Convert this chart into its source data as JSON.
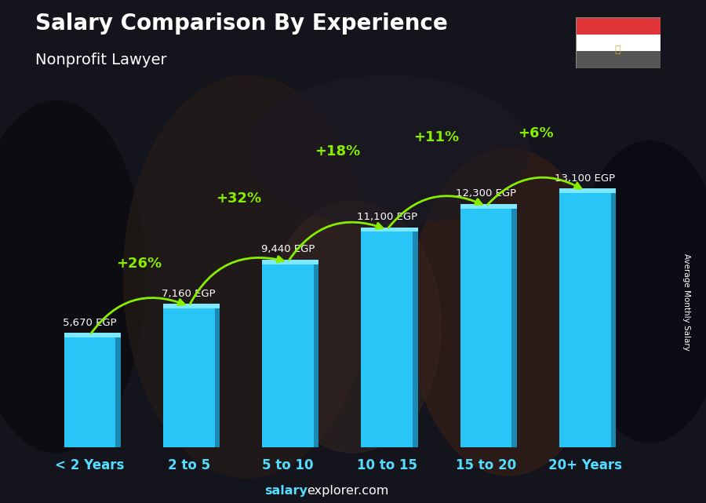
{
  "title": "Salary Comparison By Experience",
  "subtitle": "Nonprofit Lawyer",
  "categories": [
    "< 2 Years",
    "2 to 5",
    "5 to 10",
    "10 to 15",
    "15 to 20",
    "20+ Years"
  ],
  "values": [
    5670,
    7160,
    9440,
    11100,
    12300,
    13100
  ],
  "value_labels": [
    "5,670 EGP",
    "7,160 EGP",
    "9,440 EGP",
    "11,100 EGP",
    "12,300 EGP",
    "13,100 EGP"
  ],
  "pct_labels": [
    "+26%",
    "+32%",
    "+18%",
    "+11%",
    "+6%"
  ],
  "bar_face_color": "#29c5f6",
  "bar_side_color": "#1a8ab5",
  "bar_top_color": "#7de8ff",
  "bg_dark": "#1a1a22",
  "text_color": "#ffffff",
  "green_color": "#88ee00",
  "footer_bold": "salary",
  "footer_normal": "explorer.com",
  "ylabel": "Average Monthly Salary",
  "ylim_max": 15000,
  "bar_width": 0.52,
  "flag_red": "#e0363a",
  "flag_white": "#ffffff",
  "flag_grey": "#555555",
  "flag_eagle": "#d4aa30"
}
